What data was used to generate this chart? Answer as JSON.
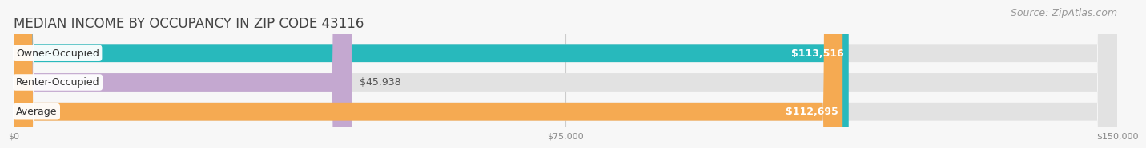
{
  "title": "MEDIAN INCOME BY OCCUPANCY IN ZIP CODE 43116",
  "source": "Source: ZipAtlas.com",
  "categories": [
    "Owner-Occupied",
    "Renter-Occupied",
    "Average"
  ],
  "values": [
    113516,
    45938,
    112695
  ],
  "bar_colors": [
    "#28b9bc",
    "#c4a8d0",
    "#f5aa52"
  ],
  "value_labels": [
    "$113,516",
    "$45,938",
    "$112,695"
  ],
  "xlim": [
    0,
    150000
  ],
  "xtick_labels": [
    "$0",
    "$75,000",
    "$150,000"
  ],
  "bg_color": "#f7f7f7",
  "bar_bg_color": "#e2e2e2",
  "title_fontsize": 12,
  "source_fontsize": 9,
  "label_fontsize": 9,
  "value_fontsize": 9,
  "bar_height": 0.62
}
